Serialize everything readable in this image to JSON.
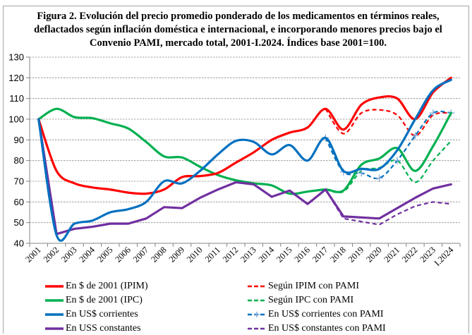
{
  "title": {
    "lines": [
      "Figura 2. Evolución del precio promedio ponderado  de los medicamentos en términos reales,",
      "deflactados según inflación doméstica e internacional, e incorporando menores precios bajo  el",
      "Convenio PAMI,  mercado total, 2001-I.2024. Índices base 2001=100."
    ]
  },
  "chart_data": {
    "type": "line",
    "title": "Figura 2. Evolución del precio promedio ponderado de los medicamentos en términos reales, deflactados según inflación doméstica e internacional, e incorporando menores precios bajo el Convenio PAMI, mercado total, 2001-I.2024. Índices base 2001=100.",
    "xlabel": "",
    "ylabel": "",
    "ylim": [
      40,
      130
    ],
    "yticks": [
      40,
      50,
      60,
      70,
      80,
      90,
      100,
      110,
      120,
      130
    ],
    "grid": "horizontal-dashed",
    "legend_position": "bottom",
    "categories": [
      "2001",
      "2002",
      "2003",
      "2004",
      "2005",
      "2006",
      "2007",
      "2008",
      "2009",
      "2010",
      "2011",
      "2012",
      "2013",
      "2014",
      "2015",
      "2016",
      "2017",
      "2018",
      "2019",
      "2020",
      "2021",
      "2022",
      "2023",
      "I.2024"
    ],
    "series": [
      {
        "name": "En $ de 2001 (IPIM)",
        "color": "#ff0000",
        "style": "solid",
        "values": [
          100,
          75,
          69,
          67,
          66,
          64.5,
          64,
          66,
          72,
          72.5,
          74,
          79,
          84,
          90,
          93.5,
          96,
          105,
          95,
          107,
          110.5,
          110,
          100,
          113,
          120
        ]
      },
      {
        "name": "En $ de 2001 (IPC)",
        "color": "#00b050",
        "style": "solid",
        "values": [
          100,
          105,
          101,
          100.5,
          98,
          95.5,
          89,
          82,
          81.5,
          77,
          73,
          70.5,
          69,
          68,
          64,
          65,
          66,
          65.5,
          78,
          81,
          86,
          75,
          87,
          103
        ]
      },
      {
        "name": "En US$ corrientes",
        "color": "#0070c0",
        "style": "solid",
        "values": [
          100,
          44,
          49.5,
          51,
          55,
          56.5,
          60,
          70,
          69,
          75,
          83,
          89.5,
          89,
          83,
          87.5,
          80,
          91,
          75,
          76,
          76,
          85,
          100,
          114,
          119
        ]
      },
      {
        "name": "En USS constantes",
        "color": "#7030a0",
        "style": "solid",
        "values": [
          100,
          44.5,
          47,
          48,
          49.5,
          49.5,
          52,
          57.5,
          57,
          62,
          66,
          69.5,
          68.5,
          62.5,
          65.5,
          59,
          66,
          53,
          52.5,
          52,
          57,
          62,
          66.5,
          68.5
        ]
      },
      {
        "name": "Según IPIM con PAMI",
        "color": "#ff0000",
        "style": "dashed",
        "values": [
          null,
          null,
          null,
          null,
          null,
          null,
          null,
          null,
          null,
          null,
          null,
          null,
          null,
          null,
          null,
          null,
          105,
          93,
          103,
          104.5,
          102,
          92,
          102,
          103
        ]
      },
      {
        "name": "Según IPC con PAMI",
        "color": "#00b050",
        "style": "dashed",
        "values": [
          null,
          null,
          null,
          null,
          null,
          null,
          null,
          null,
          null,
          null,
          null,
          null,
          null,
          null,
          null,
          null,
          66,
          65,
          75,
          76.5,
          80,
          69.5,
          80,
          89.5
        ]
      },
      {
        "name": "En US$ corrientes con PAMI",
        "color": "#0070c0",
        "style": "dashed-markers",
        "values": [
          null,
          null,
          null,
          null,
          null,
          null,
          null,
          null,
          null,
          null,
          null,
          null,
          null,
          null,
          null,
          null,
          91,
          74.5,
          74,
          71.5,
          80,
          92,
          103,
          103
        ]
      },
      {
        "name": "En US$ constantes con PAMI",
        "color": "#7030a0",
        "style": "dashed",
        "values": [
          null,
          null,
          null,
          null,
          null,
          null,
          null,
          null,
          null,
          null,
          null,
          null,
          null,
          null,
          null,
          null,
          66,
          52,
          50.5,
          49,
          54,
          58,
          60,
          59
        ]
      }
    ]
  }
}
